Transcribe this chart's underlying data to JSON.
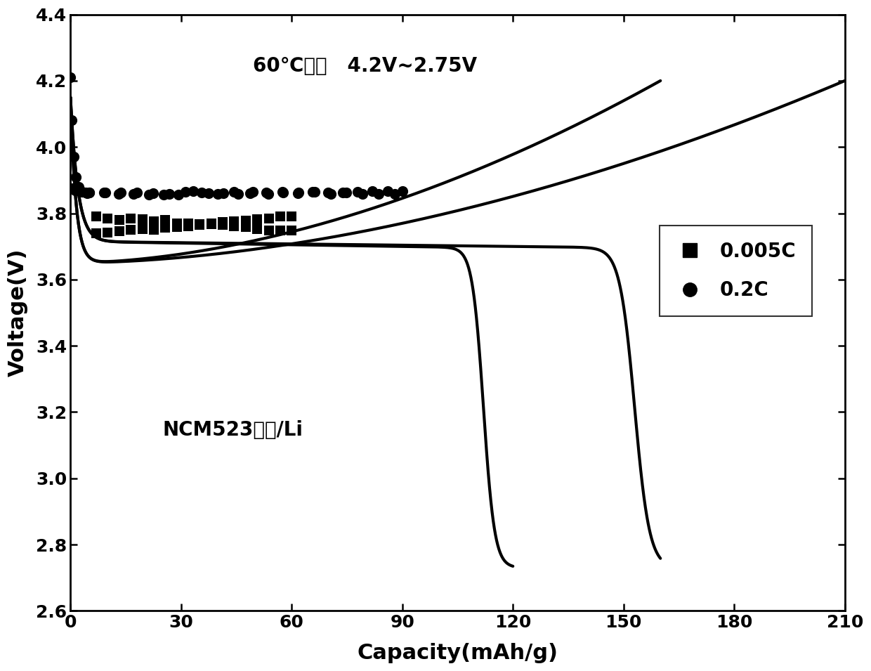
{
  "title_line1": "60℃测试   4.2V~2.75V",
  "annotation": "NCM523涂膜/Li",
  "xlabel": "Capacity(mAh/g)",
  "ylabel": "Voltage(V)",
  "xlim": [
    0,
    210
  ],
  "ylim": [
    2.6,
    4.4
  ],
  "xticks": [
    0,
    30,
    60,
    90,
    120,
    150,
    180,
    210
  ],
  "yticks": [
    2.6,
    2.8,
    3.0,
    3.2,
    3.4,
    3.6,
    3.8,
    4.0,
    4.2,
    4.4
  ],
  "legend_labels": [
    "0.005C",
    "0.2C"
  ],
  "line_color": "#000000",
  "lw": 3.0,
  "title_fontsize": 20,
  "label_fontsize": 22,
  "tick_fontsize": 18,
  "legend_fontsize": 20,
  "annot_fontsize": 20
}
